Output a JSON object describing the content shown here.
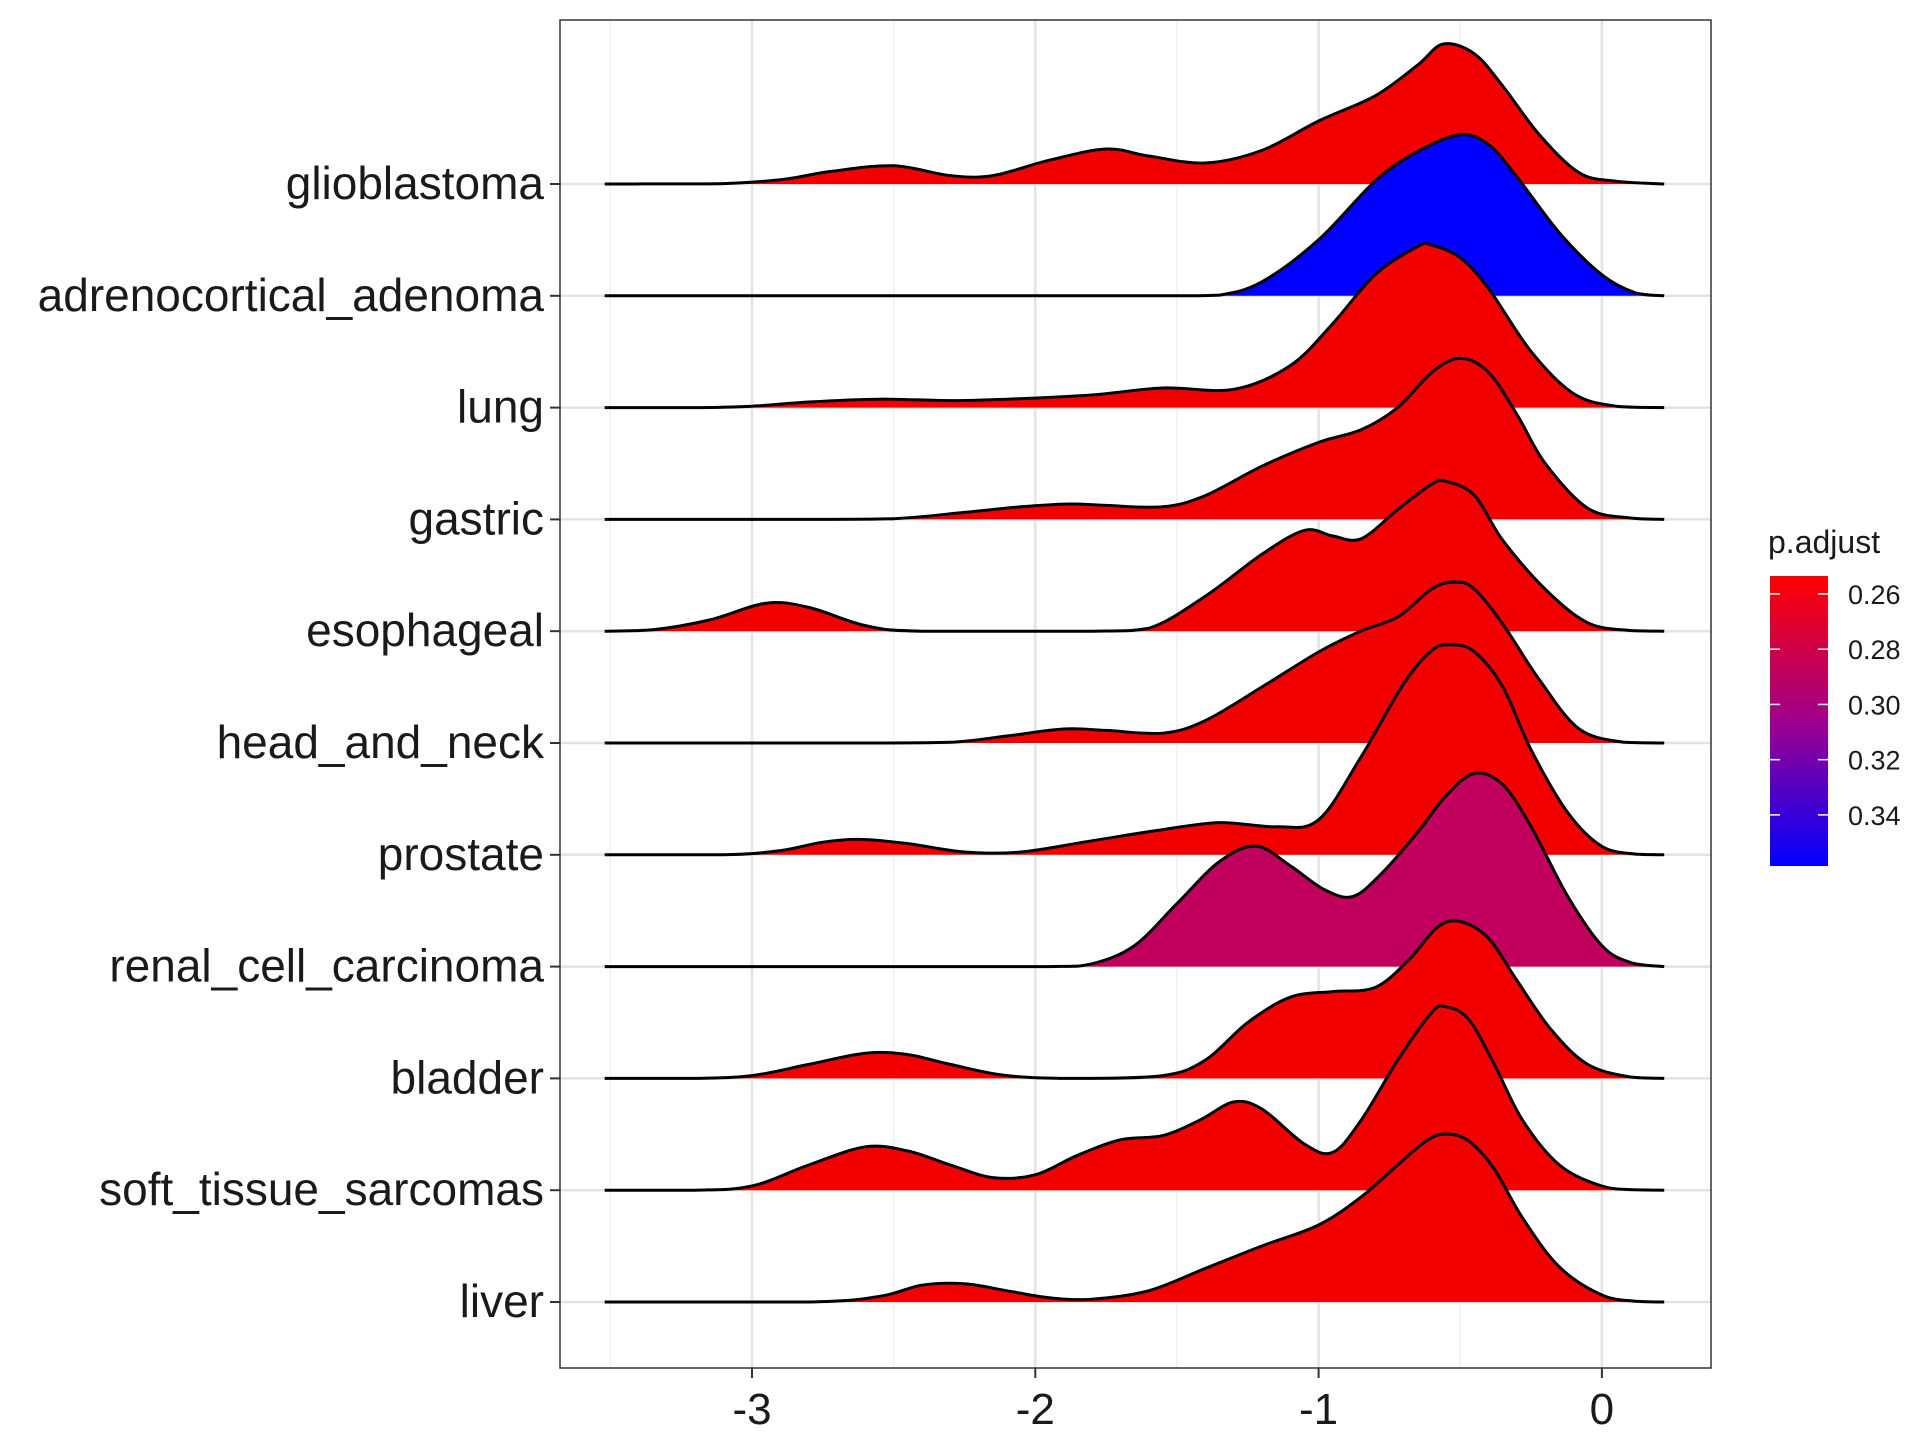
{
  "chart_data": {
    "type": "ridgeline",
    "title": "",
    "xlabel": "",
    "ylabel": "",
    "xlim": [
      -3.52,
      0.22
    ],
    "x_ticks": [
      -3,
      -2,
      -1,
      0
    ],
    "x_tick_labels": [
      "-3",
      "-2",
      "-1",
      "0"
    ],
    "grid": true,
    "legend": {
      "title": "p.adjust",
      "position": "right",
      "tick_values": [
        0.26,
        0.28,
        0.3,
        0.32,
        0.34
      ],
      "tick_labels": [
        "0.26",
        "0.28",
        "0.30",
        "0.32",
        "0.34"
      ],
      "range": [
        0.2535,
        0.3585
      ],
      "colors": {
        "low": "#ff0000",
        "high": "#0000ff"
      }
    },
    "categories": [
      "glioblastoma",
      "adrenocortical_adenoma",
      "lung",
      "gastric",
      "esophageal",
      "head_and_neck",
      "prostate",
      "renal_cell_carcinoma",
      "bladder",
      "soft_tissue_sarcomas",
      "liver"
    ],
    "series": [
      {
        "category": "glioblastoma",
        "p_adjust": 0.2545,
        "fill": "#f20000",
        "points": [
          [
            -3.52,
            0
          ],
          [
            -3.3,
            0.001
          ],
          [
            -3.1,
            0.003
          ],
          [
            -2.9,
            0.03
          ],
          [
            -2.72,
            0.09
          ],
          [
            -2.5,
            0.13
          ],
          [
            -2.3,
            0.06
          ],
          [
            -2.15,
            0.06
          ],
          [
            -1.95,
            0.17
          ],
          [
            -1.75,
            0.25
          ],
          [
            -1.6,
            0.2
          ],
          [
            -1.4,
            0.15
          ],
          [
            -1.2,
            0.24
          ],
          [
            -1.0,
            0.45
          ],
          [
            -0.8,
            0.63
          ],
          [
            -0.65,
            0.85
          ],
          [
            -0.56,
            1.0
          ],
          [
            -0.45,
            0.93
          ],
          [
            -0.35,
            0.7
          ],
          [
            -0.22,
            0.35
          ],
          [
            -0.08,
            0.08
          ],
          [
            0.05,
            0.02
          ],
          [
            0.22,
            0
          ]
        ]
      },
      {
        "category": "adrenocortical_adenoma",
        "p_adjust": 0.358,
        "fill": "#0000ff",
        "points": [
          [
            -3.52,
            0
          ],
          [
            -3.0,
            0
          ],
          [
            -2.0,
            0
          ],
          [
            -1.5,
            0
          ],
          [
            -1.35,
            0.005
          ],
          [
            -1.2,
            0.1
          ],
          [
            -1.0,
            0.4
          ],
          [
            -0.8,
            0.82
          ],
          [
            -0.65,
            1.03
          ],
          [
            -0.5,
            1.15
          ],
          [
            -0.4,
            1.08
          ],
          [
            -0.3,
            0.85
          ],
          [
            -0.15,
            0.45
          ],
          [
            0.0,
            0.15
          ],
          [
            0.12,
            0.02
          ],
          [
            0.22,
            0
          ]
        ]
      },
      {
        "category": "lung",
        "p_adjust": 0.2545,
        "fill": "#f20000",
        "points": [
          [
            -3.52,
            0
          ],
          [
            -3.2,
            0
          ],
          [
            -3.0,
            0.01
          ],
          [
            -2.8,
            0.04
          ],
          [
            -2.55,
            0.06
          ],
          [
            -2.3,
            0.05
          ],
          [
            -2.1,
            0.06
          ],
          [
            -1.8,
            0.09
          ],
          [
            -1.55,
            0.14
          ],
          [
            -1.3,
            0.13
          ],
          [
            -1.1,
            0.3
          ],
          [
            -0.95,
            0.6
          ],
          [
            -0.8,
            0.95
          ],
          [
            -0.65,
            1.15
          ],
          [
            -0.6,
            1.16
          ],
          [
            -0.5,
            1.07
          ],
          [
            -0.4,
            0.85
          ],
          [
            -0.25,
            0.4
          ],
          [
            -0.1,
            0.1
          ],
          [
            0.05,
            0.01
          ],
          [
            0.22,
            0
          ]
        ]
      },
      {
        "category": "gastric",
        "p_adjust": 0.2545,
        "fill": "#f20000",
        "points": [
          [
            -3.52,
            0
          ],
          [
            -2.8,
            0
          ],
          [
            -2.5,
            0.005
          ],
          [
            -2.25,
            0.05
          ],
          [
            -2.05,
            0.09
          ],
          [
            -1.88,
            0.11
          ],
          [
            -1.75,
            0.1
          ],
          [
            -1.55,
            0.09
          ],
          [
            -1.4,
            0.17
          ],
          [
            -1.2,
            0.38
          ],
          [
            -1.0,
            0.55
          ],
          [
            -0.85,
            0.64
          ],
          [
            -0.72,
            0.8
          ],
          [
            -0.6,
            1.05
          ],
          [
            -0.5,
            1.15
          ],
          [
            -0.4,
            1.05
          ],
          [
            -0.3,
            0.75
          ],
          [
            -0.2,
            0.4
          ],
          [
            -0.05,
            0.08
          ],
          [
            0.1,
            0.01
          ],
          [
            0.22,
            0
          ]
        ]
      },
      {
        "category": "esophageal",
        "p_adjust": 0.2545,
        "fill": "#f20000",
        "points": [
          [
            -3.52,
            0
          ],
          [
            -3.35,
            0.01
          ],
          [
            -3.15,
            0.08
          ],
          [
            -2.95,
            0.2
          ],
          [
            -2.8,
            0.17
          ],
          [
            -2.6,
            0.04
          ],
          [
            -2.4,
            0
          ],
          [
            -1.8,
            0
          ],
          [
            -1.6,
            0.02
          ],
          [
            -1.4,
            0.25
          ],
          [
            -1.2,
            0.55
          ],
          [
            -1.05,
            0.72
          ],
          [
            -0.95,
            0.68
          ],
          [
            -0.85,
            0.66
          ],
          [
            -0.72,
            0.87
          ],
          [
            -0.6,
            1.05
          ],
          [
            -0.55,
            1.07
          ],
          [
            -0.45,
            0.97
          ],
          [
            -0.35,
            0.65
          ],
          [
            -0.2,
            0.3
          ],
          [
            -0.05,
            0.06
          ],
          [
            0.1,
            0.005
          ],
          [
            0.22,
            0
          ]
        ]
      },
      {
        "category": "head_and_neck",
        "p_adjust": 0.2545,
        "fill": "#f20000",
        "points": [
          [
            -3.52,
            0
          ],
          [
            -2.6,
            0
          ],
          [
            -2.3,
            0.005
          ],
          [
            -2.1,
            0.05
          ],
          [
            -1.9,
            0.1
          ],
          [
            -1.75,
            0.09
          ],
          [
            -1.55,
            0.07
          ],
          [
            -1.4,
            0.16
          ],
          [
            -1.2,
            0.4
          ],
          [
            -1.0,
            0.65
          ],
          [
            -0.85,
            0.8
          ],
          [
            -0.72,
            0.9
          ],
          [
            -0.6,
            1.1
          ],
          [
            -0.52,
            1.15
          ],
          [
            -0.45,
            1.1
          ],
          [
            -0.35,
            0.85
          ],
          [
            -0.22,
            0.45
          ],
          [
            -0.08,
            0.1
          ],
          [
            0.08,
            0.005
          ],
          [
            0.22,
            0
          ]
        ]
      },
      {
        "category": "prostate",
        "p_adjust": 0.2545,
        "fill": "#f20000",
        "points": [
          [
            -3.52,
            0
          ],
          [
            -3.1,
            0
          ],
          [
            -2.9,
            0.03
          ],
          [
            -2.75,
            0.09
          ],
          [
            -2.62,
            0.11
          ],
          [
            -2.45,
            0.08
          ],
          [
            -2.25,
            0.02
          ],
          [
            -2.05,
            0.02
          ],
          [
            -1.8,
            0.1
          ],
          [
            -1.55,
            0.18
          ],
          [
            -1.35,
            0.23
          ],
          [
            -1.15,
            0.2
          ],
          [
            -1.0,
            0.25
          ],
          [
            -0.85,
            0.7
          ],
          [
            -0.7,
            1.22
          ],
          [
            -0.6,
            1.46
          ],
          [
            -0.53,
            1.5
          ],
          [
            -0.45,
            1.45
          ],
          [
            -0.35,
            1.2
          ],
          [
            -0.25,
            0.75
          ],
          [
            -0.12,
            0.3
          ],
          [
            0.0,
            0.06
          ],
          [
            0.12,
            0.005
          ],
          [
            0.22,
            0
          ]
        ]
      },
      {
        "category": "renal_cell_carcinoma",
        "p_adjust": 0.3023,
        "fill": "#c0005c",
        "points": [
          [
            -3.52,
            0
          ],
          [
            -2.5,
            0
          ],
          [
            -1.95,
            0
          ],
          [
            -1.8,
            0.02
          ],
          [
            -1.65,
            0.15
          ],
          [
            -1.5,
            0.45
          ],
          [
            -1.35,
            0.75
          ],
          [
            -1.22,
            0.86
          ],
          [
            -1.1,
            0.72
          ],
          [
            -0.98,
            0.55
          ],
          [
            -0.88,
            0.5
          ],
          [
            -0.78,
            0.66
          ],
          [
            -0.65,
            0.96
          ],
          [
            -0.55,
            1.22
          ],
          [
            -0.45,
            1.38
          ],
          [
            -0.35,
            1.3
          ],
          [
            -0.25,
            1.0
          ],
          [
            -0.12,
            0.5
          ],
          [
            0.0,
            0.15
          ],
          [
            0.1,
            0.03
          ],
          [
            0.22,
            0
          ]
        ]
      },
      {
        "category": "bladder",
        "p_adjust": 0.2545,
        "fill": "#f20000",
        "points": [
          [
            -3.52,
            0
          ],
          [
            -3.2,
            0
          ],
          [
            -3.0,
            0.02
          ],
          [
            -2.8,
            0.1
          ],
          [
            -2.6,
            0.18
          ],
          [
            -2.45,
            0.17
          ],
          [
            -2.3,
            0.1
          ],
          [
            -2.1,
            0.02
          ],
          [
            -1.85,
            0
          ],
          [
            -1.55,
            0.02
          ],
          [
            -1.4,
            0.13
          ],
          [
            -1.25,
            0.4
          ],
          [
            -1.1,
            0.58
          ],
          [
            -0.95,
            0.62
          ],
          [
            -0.8,
            0.65
          ],
          [
            -0.68,
            0.85
          ],
          [
            -0.58,
            1.08
          ],
          [
            -0.5,
            1.12
          ],
          [
            -0.4,
            1.0
          ],
          [
            -0.3,
            0.7
          ],
          [
            -0.18,
            0.35
          ],
          [
            -0.05,
            0.1
          ],
          [
            0.1,
            0.01
          ],
          [
            0.22,
            0
          ]
        ]
      },
      {
        "category": "soft_tissue_sarcomas",
        "p_adjust": 0.2545,
        "fill": "#f20000",
        "points": [
          [
            -3.52,
            0
          ],
          [
            -3.2,
            0
          ],
          [
            -3.0,
            0.03
          ],
          [
            -2.8,
            0.18
          ],
          [
            -2.6,
            0.31
          ],
          [
            -2.45,
            0.28
          ],
          [
            -2.3,
            0.18
          ],
          [
            -2.15,
            0.09
          ],
          [
            -2.0,
            0.11
          ],
          [
            -1.85,
            0.25
          ],
          [
            -1.7,
            0.36
          ],
          [
            -1.55,
            0.39
          ],
          [
            -1.42,
            0.5
          ],
          [
            -1.3,
            0.63
          ],
          [
            -1.2,
            0.58
          ],
          [
            -1.05,
            0.33
          ],
          [
            -0.95,
            0.27
          ],
          [
            -0.85,
            0.5
          ],
          [
            -0.72,
            0.93
          ],
          [
            -0.6,
            1.27
          ],
          [
            -0.55,
            1.31
          ],
          [
            -0.47,
            1.22
          ],
          [
            -0.38,
            0.9
          ],
          [
            -0.28,
            0.5
          ],
          [
            -0.15,
            0.18
          ],
          [
            0.0,
            0.03
          ],
          [
            0.12,
            0.003
          ],
          [
            0.22,
            0
          ]
        ]
      },
      {
        "category": "liver",
        "p_adjust": 0.2545,
        "fill": "#f20000",
        "points": [
          [
            -3.52,
            0
          ],
          [
            -2.8,
            0
          ],
          [
            -2.55,
            0.04
          ],
          [
            -2.4,
            0.12
          ],
          [
            -2.25,
            0.13
          ],
          [
            -2.1,
            0.08
          ],
          [
            -1.95,
            0.03
          ],
          [
            -1.8,
            0.02
          ],
          [
            -1.6,
            0.08
          ],
          [
            -1.4,
            0.24
          ],
          [
            -1.2,
            0.4
          ],
          [
            -1.0,
            0.55
          ],
          [
            -0.85,
            0.75
          ],
          [
            -0.72,
            0.98
          ],
          [
            -0.62,
            1.15
          ],
          [
            -0.55,
            1.2
          ],
          [
            -0.47,
            1.15
          ],
          [
            -0.38,
            0.95
          ],
          [
            -0.28,
            0.6
          ],
          [
            -0.15,
            0.25
          ],
          [
            0.0,
            0.05
          ],
          [
            0.12,
            0.005
          ],
          [
            0.22,
            0
          ]
        ]
      }
    ]
  }
}
